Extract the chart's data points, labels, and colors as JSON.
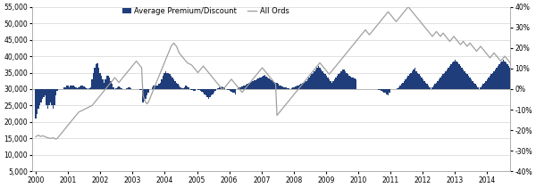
{
  "legend_labels": [
    "Average Premium/Discount",
    "All Ords"
  ],
  "bar_color": "#1f3d7a",
  "line_color": "#a0a0a0",
  "left_ylim": [
    5000,
    55000
  ],
  "right_ylim": [
    -0.4,
    0.4
  ],
  "left_yticks": [
    5000,
    10000,
    15000,
    20000,
    25000,
    30000,
    35000,
    40000,
    45000,
    50000,
    55000
  ],
  "right_yticks": [
    -0.4,
    -0.3,
    -0.2,
    -0.1,
    0.0,
    0.1,
    0.2,
    0.3,
    0.4
  ],
  "x_start_year": 2000,
  "x_end_year": 2015,
  "background_color": "#ffffff",
  "grid_color": "#d5d5d5",
  "fig_width": 6.0,
  "fig_height": 2.11,
  "dpi": 100,
  "bar_baseline": 30000,
  "bar_data": [
    21000,
    22500,
    24000,
    25000,
    26000,
    27000,
    27500,
    28000,
    25000,
    24000,
    25000,
    26000,
    25000,
    24000,
    25000,
    28000,
    29500,
    30000,
    30000,
    30000,
    30000,
    30500,
    30500,
    31000,
    31000,
    30500,
    31000,
    31200,
    31000,
    30800,
    30500,
    30200,
    30500,
    30800,
    31000,
    31200,
    30800,
    30500,
    30200,
    30000,
    30200,
    30500,
    33000,
    35000,
    36500,
    37500,
    37800,
    36500,
    35000,
    34000,
    33000,
    32000,
    33000,
    34000,
    34000,
    33500,
    32500,
    31500,
    30500,
    30000,
    30200,
    30500,
    30800,
    30500,
    30200,
    30000,
    30000,
    30000,
    30200,
    30500,
    30500,
    30200,
    30000,
    30000,
    30000,
    30000,
    30000,
    30000,
    29800,
    29600,
    26000,
    26500,
    27000,
    28000,
    29000,
    30000,
    30000,
    30500,
    31000,
    30800,
    31000,
    31000,
    31500,
    32000,
    33000,
    34000,
    35000,
    35500,
    35000,
    35000,
    34500,
    34000,
    33500,
    33000,
    32500,
    32000,
    31500,
    31000,
    30500,
    30200,
    30200,
    30500,
    31000,
    30800,
    30500,
    30000,
    29800,
    29600,
    29500,
    29400,
    30000,
    29800,
    29600,
    29500,
    29200,
    28800,
    28500,
    28000,
    27500,
    27000,
    27500,
    28000,
    28500,
    29000,
    29500,
    30000,
    30200,
    30400,
    30600,
    30800,
    30500,
    30200,
    30000,
    29800,
    29600,
    29500,
    29200,
    29000,
    28800,
    28500,
    30000,
    30200,
    30400,
    30600,
    30800,
    31000,
    31200,
    31400,
    31600,
    31800,
    32000,
    32200,
    32400,
    32600,
    32800,
    33000,
    33200,
    33400,
    33600,
    33800,
    34000,
    34200,
    33800,
    33500,
    33200,
    33000,
    32800,
    32500,
    32200,
    32000,
    31800,
    31500,
    31200,
    31000,
    30800,
    30600,
    30500,
    30400,
    30300,
    30200,
    30000,
    30200,
    30400,
    30600,
    30800,
    31000,
    31200,
    31400,
    31600,
    31800,
    32000,
    32200,
    32500,
    33000,
    33500,
    34000,
    34500,
    35000,
    35500,
    36000,
    36500,
    37000,
    36500,
    36000,
    35500,
    35000,
    34500,
    34000,
    33500,
    33000,
    32500,
    32000,
    32500,
    33000,
    33500,
    34000,
    34500,
    35000,
    35500,
    36000,
    36000,
    35500,
    35000,
    34500,
    34000,
    33800,
    33600,
    33400,
    33200,
    33000,
    30000,
    30000,
    30000,
    30000,
    30000,
    30000,
    30000,
    30000,
    30000,
    30000,
    30000,
    30000,
    30000,
    30000,
    30000,
    30000,
    29800,
    29600,
    29400,
    29200,
    29000,
    28800,
    28500,
    28200,
    29000,
    30000,
    30000,
    30000,
    30000,
    30000,
    30200,
    30500,
    31000,
    31500,
    32000,
    32500,
    33000,
    33500,
    34000,
    34500,
    35000,
    35500,
    36000,
    36500,
    35500,
    35000,
    34500,
    34000,
    33500,
    33000,
    32500,
    32000,
    31500,
    31000,
    30500,
    30000,
    30500,
    31000,
    31500,
    32000,
    32500,
    33000,
    33500,
    34000,
    34500,
    35000,
    35500,
    36000,
    36500,
    37000,
    37500,
    38000,
    38500,
    39000,
    38500,
    38000,
    37500,
    37000,
    36500,
    36000,
    35500,
    35000,
    34500,
    34000,
    33500,
    33000,
    32500,
    32000,
    31500,
    31000,
    30500,
    30000,
    30500,
    31000,
    31500,
    32000,
    32500,
    33000,
    33500,
    34000,
    34500,
    35000,
    35500,
    36000,
    36500,
    37000,
    37500,
    38000,
    38500,
    39000,
    38500,
    38000,
    37500,
    37000,
    36500,
    36000,
    35500,
    35000,
    34500,
    34000
  ],
  "allords_data": [
    15500,
    15800,
    16000,
    15700,
    15600,
    15800,
    15700,
    15500,
    15300,
    15200,
    15100,
    15000,
    15100,
    15200,
    15000,
    14800,
    15000,
    15500,
    16000,
    16500,
    17000,
    17500,
    18000,
    18500,
    19000,
    19500,
    20000,
    20500,
    21000,
    21500,
    22000,
    22500,
    23000,
    23200,
    23400,
    23600,
    23800,
    24000,
    24200,
    24400,
    24600,
    24800,
    25000,
    25500,
    26000,
    26500,
    27000,
    27500,
    28000,
    28500,
    29000,
    29500,
    30000,
    30500,
    31000,
    31500,
    32000,
    32500,
    33000,
    33500,
    33000,
    32500,
    32000,
    32500,
    33000,
    33500,
    34000,
    34500,
    35000,
    35500,
    36000,
    36500,
    37000,
    37500,
    38000,
    38500,
    38000,
    37500,
    37000,
    36500,
    28000,
    27000,
    26000,
    25500,
    26000,
    27000,
    28000,
    29000,
    30000,
    31000,
    32000,
    33000,
    34000,
    35000,
    36000,
    37000,
    38000,
    39000,
    40000,
    41000,
    42000,
    43000,
    43500,
    44000,
    43500,
    43000,
    42000,
    41000,
    40500,
    40000,
    39500,
    39000,
    38500,
    38000,
    37800,
    37600,
    37400,
    37000,
    36500,
    36000,
    35500,
    35000,
    35500,
    36000,
    36500,
    37000,
    36500,
    36000,
    35500,
    35000,
    34500,
    34000,
    33500,
    33000,
    32500,
    32000,
    31500,
    31000,
    30500,
    30000,
    30000,
    30500,
    31000,
    31500,
    32000,
    32500,
    33000,
    32500,
    32000,
    31500,
    31000,
    30500,
    30000,
    29500,
    29000,
    29500,
    30000,
    30500,
    31000,
    31500,
    32000,
    32500,
    33000,
    33500,
    34000,
    34500,
    35000,
    35500,
    36000,
    36500,
    36000,
    35500,
    35000,
    34500,
    34000,
    33500,
    33000,
    32500,
    32000,
    31500,
    22000,
    22500,
    23000,
    23500,
    24000,
    24500,
    25000,
    25500,
    26000,
    26500,
    27000,
    27500,
    28000,
    28500,
    29000,
    29500,
    30000,
    30500,
    31000,
    31500,
    32000,
    32500,
    33000,
    33500,
    34000,
    34500,
    35000,
    35500,
    36000,
    36500,
    37000,
    37500,
    38000,
    37500,
    37000,
    36500,
    36000,
    35500,
    35000,
    34500,
    35000,
    35500,
    36000,
    36500,
    37000,
    37500,
    38000,
    38500,
    39000,
    39500,
    40000,
    40500,
    41000,
    41500,
    42000,
    42500,
    43000,
    43500,
    44000,
    44500,
    45000,
    45500,
    46000,
    46500,
    47000,
    47500,
    48000,
    47500,
    47000,
    46500,
    47000,
    47500,
    48000,
    48500,
    49000,
    49500,
    50000,
    50500,
    51000,
    51500,
    52000,
    52500,
    53000,
    53500,
    53000,
    52500,
    52000,
    51500,
    51000,
    50500,
    51000,
    51500,
    52000,
    52500,
    53000,
    53500,
    54000,
    54500,
    55000,
    54500,
    54000,
    53500,
    53000,
    52500,
    52000,
    51500,
    51000,
    50500,
    50000,
    49500,
    49000,
    48500,
    48000,
    47500,
    47000,
    46500,
    46000,
    46500,
    47000,
    47500,
    47000,
    46500,
    46000,
    46500,
    47000,
    46500,
    46000,
    45500,
    45000,
    44500,
    45000,
    45500,
    46000,
    45500,
    45000,
    44500,
    44000,
    43500,
    44000,
    44500,
    44000,
    43500,
    43000,
    43500,
    44000,
    43500,
    43000,
    42500,
    42000,
    41500,
    42000,
    42500,
    43000,
    42500,
    42000,
    41500,
    41000,
    40500,
    40000,
    39500,
    40000,
    40500,
    41000,
    40500,
    40000,
    39500,
    39000,
    38500,
    39000,
    39500,
    40000,
    39500,
    39000,
    38500,
    38000,
    37500,
    37000,
    36500,
    37000,
    37500
  ]
}
